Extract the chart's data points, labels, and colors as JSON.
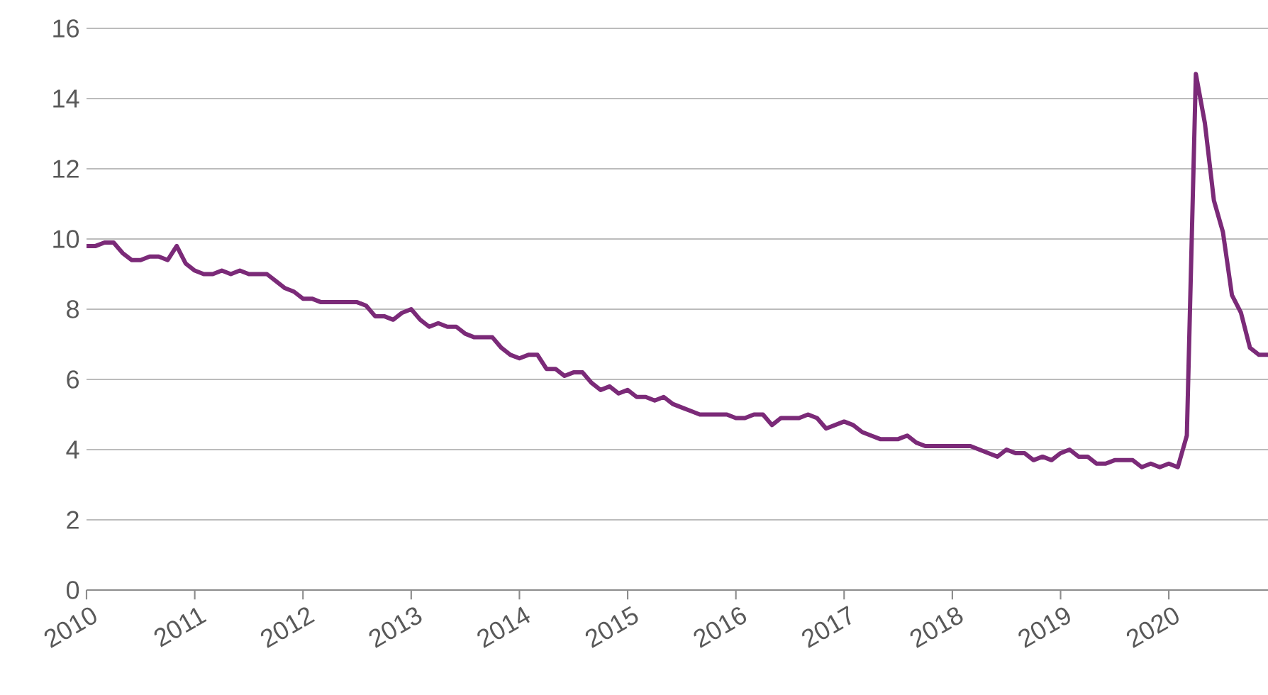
{
  "chart_data": {
    "type": "line",
    "x": [
      "2010-01",
      "2010-02",
      "2010-03",
      "2010-04",
      "2010-05",
      "2010-06",
      "2010-07",
      "2010-08",
      "2010-09",
      "2010-10",
      "2010-11",
      "2010-12",
      "2011-01",
      "2011-02",
      "2011-03",
      "2011-04",
      "2011-05",
      "2011-06",
      "2011-07",
      "2011-08",
      "2011-09",
      "2011-10",
      "2011-11",
      "2011-12",
      "2012-01",
      "2012-02",
      "2012-03",
      "2012-04",
      "2012-05",
      "2012-06",
      "2012-07",
      "2012-08",
      "2012-09",
      "2012-10",
      "2012-11",
      "2012-12",
      "2013-01",
      "2013-02",
      "2013-03",
      "2013-04",
      "2013-05",
      "2013-06",
      "2013-07",
      "2013-08",
      "2013-09",
      "2013-10",
      "2013-11",
      "2013-12",
      "2014-01",
      "2014-02",
      "2014-03",
      "2014-04",
      "2014-05",
      "2014-06",
      "2014-07",
      "2014-08",
      "2014-09",
      "2014-10",
      "2014-11",
      "2014-12",
      "2015-01",
      "2015-02",
      "2015-03",
      "2015-04",
      "2015-05",
      "2015-06",
      "2015-07",
      "2015-08",
      "2015-09",
      "2015-10",
      "2015-11",
      "2015-12",
      "2016-01",
      "2016-02",
      "2016-03",
      "2016-04",
      "2016-05",
      "2016-06",
      "2016-07",
      "2016-08",
      "2016-09",
      "2016-10",
      "2016-11",
      "2016-12",
      "2017-01",
      "2017-02",
      "2017-03",
      "2017-04",
      "2017-05",
      "2017-06",
      "2017-07",
      "2017-08",
      "2017-09",
      "2017-10",
      "2017-11",
      "2017-12",
      "2018-01",
      "2018-02",
      "2018-03",
      "2018-04",
      "2018-05",
      "2018-06",
      "2018-07",
      "2018-08",
      "2018-09",
      "2018-10",
      "2018-11",
      "2018-12",
      "2019-01",
      "2019-02",
      "2019-03",
      "2019-04",
      "2019-05",
      "2019-06",
      "2019-07",
      "2019-08",
      "2019-09",
      "2019-10",
      "2019-11",
      "2019-12",
      "2020-01",
      "2020-02",
      "2020-03",
      "2020-04",
      "2020-05",
      "2020-06",
      "2020-07",
      "2020-08",
      "2020-09",
      "2020-10",
      "2020-11",
      "2020-12"
    ],
    "series": [
      {
        "color": "#7b2a78",
        "values": [
          9.8,
          9.8,
          9.9,
          9.9,
          9.6,
          9.4,
          9.4,
          9.5,
          9.5,
          9.4,
          9.8,
          9.3,
          9.1,
          9.0,
          9.0,
          9.1,
          9.0,
          9.1,
          9.0,
          9.0,
          9.0,
          8.8,
          8.6,
          8.5,
          8.3,
          8.3,
          8.2,
          8.2,
          8.2,
          8.2,
          8.2,
          8.1,
          7.8,
          7.8,
          7.7,
          7.9,
          8.0,
          7.7,
          7.5,
          7.6,
          7.5,
          7.5,
          7.3,
          7.2,
          7.2,
          7.2,
          6.9,
          6.7,
          6.6,
          6.7,
          6.7,
          6.3,
          6.3,
          6.1,
          6.2,
          6.2,
          5.9,
          5.7,
          5.8,
          5.6,
          5.7,
          5.5,
          5.5,
          5.4,
          5.5,
          5.3,
          5.2,
          5.1,
          5.0,
          5.0,
          5.0,
          5.0,
          4.9,
          4.9,
          5.0,
          5.0,
          4.7,
          4.9,
          4.9,
          4.9,
          5.0,
          4.9,
          4.6,
          4.7,
          4.8,
          4.7,
          4.5,
          4.4,
          4.3,
          4.3,
          4.3,
          4.4,
          4.2,
          4.1,
          4.1,
          4.1,
          4.1,
          4.1,
          4.1,
          4.0,
          3.9,
          3.8,
          4.0,
          3.9,
          3.9,
          3.7,
          3.8,
          3.7,
          3.9,
          4.0,
          3.8,
          3.8,
          3.6,
          3.6,
          3.7,
          3.7,
          3.7,
          3.5,
          3.6,
          3.5,
          3.6,
          3.5,
          4.4,
          14.7,
          13.3,
          11.1,
          10.2,
          8.4,
          7.9,
          6.9,
          6.7,
          6.7
        ]
      }
    ],
    "xlim": [
      "2010-01",
      "2020-12"
    ],
    "xticks": [
      "2010",
      "2011",
      "2012",
      "2013",
      "2014",
      "2015",
      "2016",
      "2017",
      "2018",
      "2019",
      "2020"
    ],
    "ylim": [
      0,
      16
    ],
    "yticks": [
      0,
      2,
      4,
      6,
      8,
      10,
      12,
      14,
      16
    ],
    "grid": "y",
    "line_style": "solid",
    "marker": "none"
  }
}
